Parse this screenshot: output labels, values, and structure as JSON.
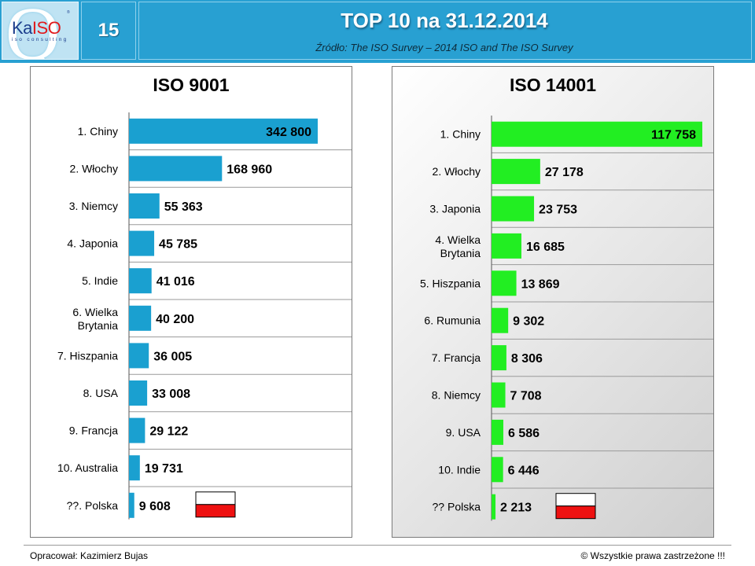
{
  "header": {
    "logo": {
      "text_ka": "Ka",
      "text_iso": "ISO",
      "sub": "iso consulting",
      "tm": "®"
    },
    "slide_number": "15",
    "title": "TOP 10 na 31.12.2014",
    "subtitle": "Źródło: The ISO Survey – 2014   ISO and The ISO Survey"
  },
  "colors": {
    "header_bg": "#28a0d2",
    "iso9001_bar": "#1aa0d0",
    "iso14001_bar": "#22ee22",
    "flag_white": "#ffffff",
    "flag_red": "#ee1111"
  },
  "chart_data": [
    {
      "type": "bar",
      "orientation": "horizontal",
      "title": "ISO 9001",
      "categories": [
        "1. Chiny",
        "2. Włochy",
        "3. Niemcy",
        "4. Japonia",
        "5. Indie",
        "6. Wielka Brytania",
        "7. Hiszpania",
        "8. USA",
        "9. Francja",
        "10. Australia",
        "??. Polska"
      ],
      "values": [
        342800,
        168960,
        55363,
        45785,
        41016,
        40200,
        36005,
        33008,
        29122,
        19731,
        9608
      ],
      "value_labels": [
        "342 800",
        "168 960",
        "55 363",
        "45 785",
        "41 016",
        "40 200",
        "36 005",
        "33 008",
        "29 122",
        "19 731",
        "9 608"
      ],
      "flag_category": "??. Polska",
      "grid": "horizontal",
      "legend": "none"
    },
    {
      "type": "bar",
      "orientation": "horizontal",
      "title": "ISO 14001",
      "categories": [
        "1. Chiny",
        "2. Włochy",
        "3. Japonia",
        "4. Wielka Brytania",
        "5. Hiszpania",
        "6. Rumunia",
        "7. Francja",
        "8. Niemcy",
        "9. USA",
        "10. Indie",
        "?? Polska"
      ],
      "values": [
        117758,
        27178,
        23753,
        16685,
        13869,
        9302,
        8306,
        7708,
        6586,
        6446,
        2213
      ],
      "value_labels": [
        "117 758",
        "27 178",
        "23 753",
        "16 685",
        "13 869",
        "9 302",
        "8 306",
        "7 708",
        "6 586",
        "6 446",
        "2 213"
      ],
      "flag_category": "?? Polska",
      "grid": "horizontal",
      "legend": "none"
    }
  ],
  "footer": {
    "author": "Opracował: Kazimierz Bujas",
    "rights": "© Wszystkie prawa zastrzeżone !!!"
  }
}
